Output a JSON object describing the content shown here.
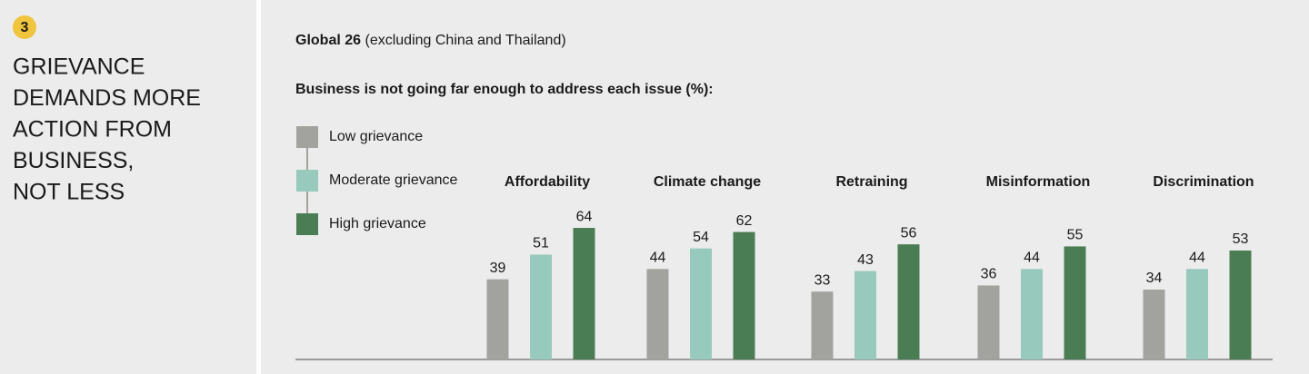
{
  "panel": {
    "number": "3",
    "heading_lines": [
      "GRIEVANCE",
      "DEMANDS MORE",
      "ACTION FROM",
      "BUSINESS,",
      "NOT LESS"
    ]
  },
  "chart_data": {
    "type": "bar",
    "title": "Global 26",
    "subtitle": "(excluding China and Thailand)",
    "y_label": "Business is not going far enough to address each issue (%):",
    "categories": [
      "Affordability",
      "Climate change",
      "Retraining",
      "Misinformation",
      "Discrimination"
    ],
    "series": [
      {
        "name": "Low grievance",
        "color": "#a2a29f",
        "values": [
          39,
          44,
          33,
          36,
          34
        ]
      },
      {
        "name": "Moderate grievance",
        "color": "#97c9bc",
        "values": [
          51,
          54,
          43,
          44,
          44
        ]
      },
      {
        "name": "High grievance",
        "color": "#4b7d55",
        "values": [
          64,
          62,
          56,
          55,
          53
        ]
      }
    ]
  }
}
